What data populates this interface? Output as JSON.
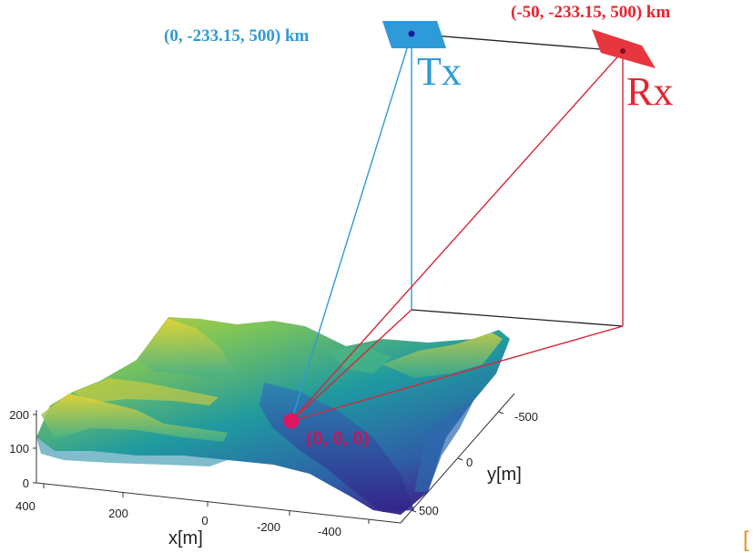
{
  "tx": {
    "label": "Tx",
    "coords": "(0, -233.15, 500) km",
    "color": "#2e9ad8"
  },
  "rx": {
    "label": "Rx",
    "coords": "(-50, -233.15, 500) km",
    "color": "#e8232e"
  },
  "origin": {
    "coords": "(0, 0, 0)",
    "color": "#e0155f"
  },
  "axes": {
    "z_ticks": [
      "200",
      "100",
      "0"
    ],
    "x_ticks": [
      "400",
      "200",
      "0",
      "-200",
      "-400"
    ],
    "y_ticks": [
      "-500",
      "0",
      "500"
    ],
    "x_label": "x[m]",
    "y_label": "y[m]"
  },
  "colors": {
    "box_edge": "#222222",
    "terrain_low": "#3b2f8f",
    "terrain_mid": "#1fa0a0",
    "terrain_high": "#e8d52a"
  }
}
